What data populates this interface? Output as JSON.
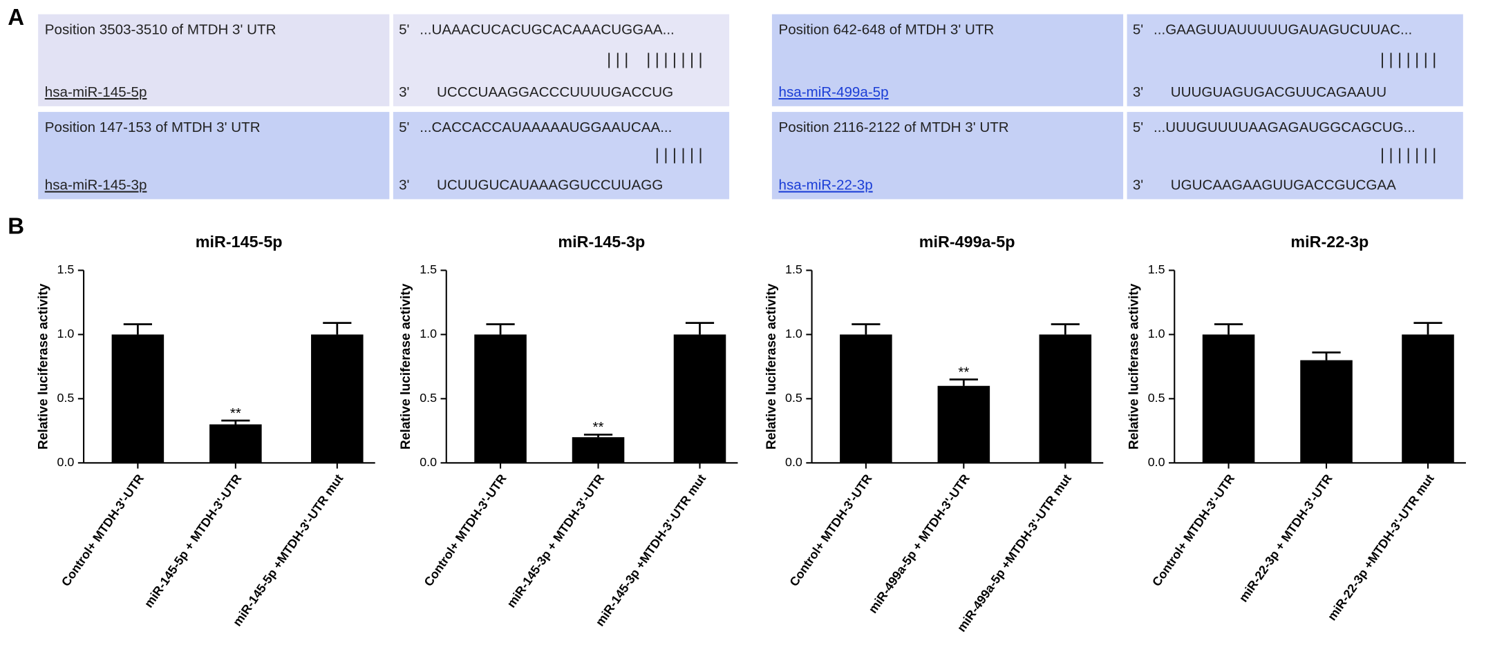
{
  "panel_a": {
    "letter": "A",
    "boxes": [
      {
        "label": "Position 3503-3510 of MTDH 3' UTR",
        "mirna": "hsa-miR-145-5p",
        "five": "5'",
        "target": "...UAAACUCACUGCACAAACUGGAA...",
        "pairing": "| | |    | | | | | | |",
        "three": "3'",
        "mirna_seq": "UCCCUAAGGACCCUUUUGACCUG"
      },
      {
        "label": "Position 147-153 of MTDH 3' UTR",
        "mirna": "hsa-miR-145-3p",
        "five": "5'",
        "target": "...CACCACCAUAAAAAUGGAAUCAA...",
        "pairing": "| | | | | |",
        "three": "3'",
        "mirna_seq": "UCUUGUCAUAAAGGUCCUUAGG"
      },
      {
        "label": "Position 642-648 of MTDH 3' UTR",
        "mirna": "hsa-miR-499a-5p",
        "five": "5'",
        "target": "...GAAGUUAUUUUUGAUAGUCUUAC...",
        "pairing": "| | | | | | |",
        "three": "3'",
        "mirna_seq": "UUUGUAGUGACGUUCAGAAUU"
      },
      {
        "label": "Position 2116-2122 of MTDH 3' UTR",
        "mirna": "hsa-miR-22-3p",
        "five": "5'",
        "target": "...UUUGUUUUAAGAGAUGGCAGCUG...",
        "pairing": "| | | | | | |",
        "three": "3'",
        "mirna_seq": "UGUCAAGAAGUUGACCGUCGAA"
      }
    ]
  },
  "panel_b": {
    "letter": "B"
  },
  "chart_data": [
    {
      "type": "bar",
      "title": "miR-145-5p",
      "y_label": "Relative luciferase activity",
      "color": "#000000",
      "categories": [
        "Control+ MTDH-3'-UTR",
        "miR-145-5p + MTDH-3'-UTR",
        "miR-145-5p +MTDH-3'-UTR mut"
      ],
      "values": [
        1.0,
        0.3,
        1.0
      ],
      "errors": [
        0.08,
        0.03,
        0.09
      ],
      "markers": [
        null,
        "**",
        null
      ],
      "ylim": [
        0,
        1.5
      ],
      "yticks": [
        {
          "value": 0,
          "label": "0.0"
        },
        0.5,
        {
          "value": 1,
          "label": "1.0"
        },
        1.5
      ]
    },
    {
      "type": "bar",
      "title": "miR-145-3p",
      "y_label": "Relative luciferase activity",
      "color": "#000000",
      "categories": [
        "Control+ MTDH-3'-UTR",
        "miR-145-3p + MTDH-3'-UTR",
        "miR-145-3p +MTDH-3'-UTR mut"
      ],
      "values": [
        1.0,
        0.2,
        1.0
      ],
      "errors": [
        0.08,
        0.02,
        0.09
      ],
      "markers": [
        null,
        "**",
        null
      ],
      "ylim": [
        0,
        1.5
      ],
      "yticks": [
        {
          "value": 0,
          "label": "0.0"
        },
        0.5,
        {
          "value": 1,
          "label": "1.0"
        },
        1.5
      ]
    },
    {
      "type": "bar",
      "title": "miR-499a-5p",
      "y_label": "Relative luciferase activity",
      "color": "#000000",
      "categories": [
        "Control+ MTDH-3'-UTR",
        "miR-499a-5p + MTDH-3'-UTR",
        "miR-499a-5p +MTDH-3'-UTR mut"
      ],
      "values": [
        1.0,
        0.6,
        1.0
      ],
      "errors": [
        0.08,
        0.05,
        0.08
      ],
      "markers": [
        null,
        "**",
        null
      ],
      "ylim": [
        0,
        1.5
      ],
      "yticks": [
        {
          "value": 0,
          "label": "0.0"
        },
        0.5,
        {
          "value": 1,
          "label": "1.0"
        },
        1.5
      ]
    },
    {
      "type": "bar",
      "title": "miR-22-3p",
      "y_label": "Relative luciferase activity",
      "color": "#000000",
      "categories": [
        "Control+ MTDH-3'-UTR",
        "miR-22-3p + MTDH-3'-UTR",
        "miR-22-3p +MTDH-3'-UTR mut"
      ],
      "values": [
        1.0,
        0.8,
        1.0
      ],
      "errors": [
        0.08,
        0.06,
        0.09
      ],
      "markers": [
        null,
        null,
        null
      ],
      "ylim": [
        0,
        1.5
      ],
      "yticks": [
        {
          "value": 0,
          "label": "0.0"
        },
        0.5,
        {
          "value": 1,
          "label": "1.0"
        },
        1.5
      ]
    }
  ]
}
